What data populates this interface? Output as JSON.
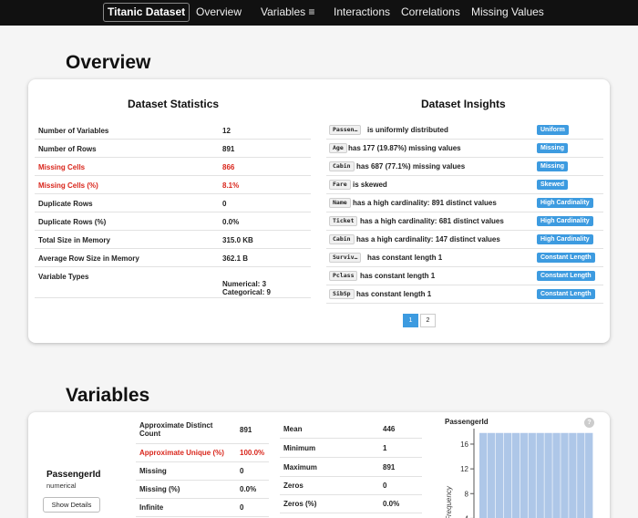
{
  "navbar": {
    "brand": "Titanic Dataset",
    "links": [
      "Overview",
      "Variables ≡",
      "Interactions",
      "Correlations",
      "Missing Values"
    ]
  },
  "overview": {
    "title": "Overview",
    "stats_title": "Dataset Statistics",
    "insights_title": "Dataset Insights",
    "stats": [
      {
        "label": "Number of Variables",
        "value": "12"
      },
      {
        "label": "Number of Rows",
        "value": "891"
      },
      {
        "label": "Missing Cells",
        "value": "866"
      },
      {
        "label": "Missing Cells (%)",
        "value": "8.1%"
      },
      {
        "label": "Duplicate Rows",
        "value": "0"
      },
      {
        "label": "Duplicate Rows (%)",
        "value": "0.0%"
      },
      {
        "label": "Total Size in Memory",
        "value": "315.0 KB"
      },
      {
        "label": "Average Row Size in Memory",
        "value": "362.1 B"
      },
      {
        "label": "Variable Types",
        "value": "Numerical: 3",
        "value2": "Categorical: 9"
      }
    ],
    "insights": [
      {
        "code": "Passen…",
        "text": "is uniformly distributed",
        "badge": "Uniform"
      },
      {
        "code": "Age",
        "text": "has 177 (19.87%) missing values",
        "badge": "Missing"
      },
      {
        "code": "Cabin",
        "text": "has 687 (77.1%) missing values",
        "badge": "Missing"
      },
      {
        "code": "Fare",
        "text": "is skewed",
        "badge": "Skewed"
      },
      {
        "code": "Name",
        "text": "has a high cardinality: 891 distinct values",
        "badge": "High Cardinality"
      },
      {
        "code": "Ticket",
        "text": "has a high cardinality: 681 distinct values",
        "badge": "High Cardinality"
      },
      {
        "code": "Cabin",
        "text": "has a high cardinality: 147 distinct values",
        "badge": "High Cardinality"
      },
      {
        "code": "Surviv…",
        "text": "has constant length 1",
        "badge": "Constant Length"
      },
      {
        "code": "Pclass",
        "text": "has constant length 1",
        "badge": "Constant Length"
      },
      {
        "code": "SibSp",
        "text": "has constant length 1",
        "badge": "Constant Length"
      }
    ],
    "pages": [
      "1",
      "2"
    ]
  },
  "variables": {
    "title": "Variables",
    "variable": {
      "name": "PassengerId",
      "type": "numerical",
      "details_label": "Show Details",
      "stats_left": [
        {
          "label": "Approximate Distinct Count",
          "value": "891"
        },
        {
          "label": "Approximate Unique (%)",
          "value": "100.0%"
        },
        {
          "label": "Missing",
          "value": "0"
        },
        {
          "label": "Missing (%)",
          "value": "0.0%"
        },
        {
          "label": "Infinite",
          "value": "0"
        }
      ],
      "stats_right": [
        {
          "label": "Mean",
          "value": "446"
        },
        {
          "label": "Minimum",
          "value": "1"
        },
        {
          "label": "Maximum",
          "value": "891"
        },
        {
          "label": "Zeros",
          "value": "0"
        },
        {
          "label": "Zeros (%)",
          "value": "0.0%"
        }
      ],
      "help_icon": "?"
    }
  },
  "chart_data": {
    "type": "bar",
    "title": "PassengerId",
    "ylabel": "Frequency",
    "yticks": [
      4,
      8,
      12,
      16
    ],
    "ylim": [
      2,
      18.5
    ],
    "values": [
      17.8,
      17.8,
      17.8,
      17.8,
      17.8,
      17.8,
      17.8,
      17.8,
      17.8,
      17.8,
      17.8,
      17.8,
      17.8,
      17.8
    ],
    "bar_color": "#aec7e8"
  }
}
